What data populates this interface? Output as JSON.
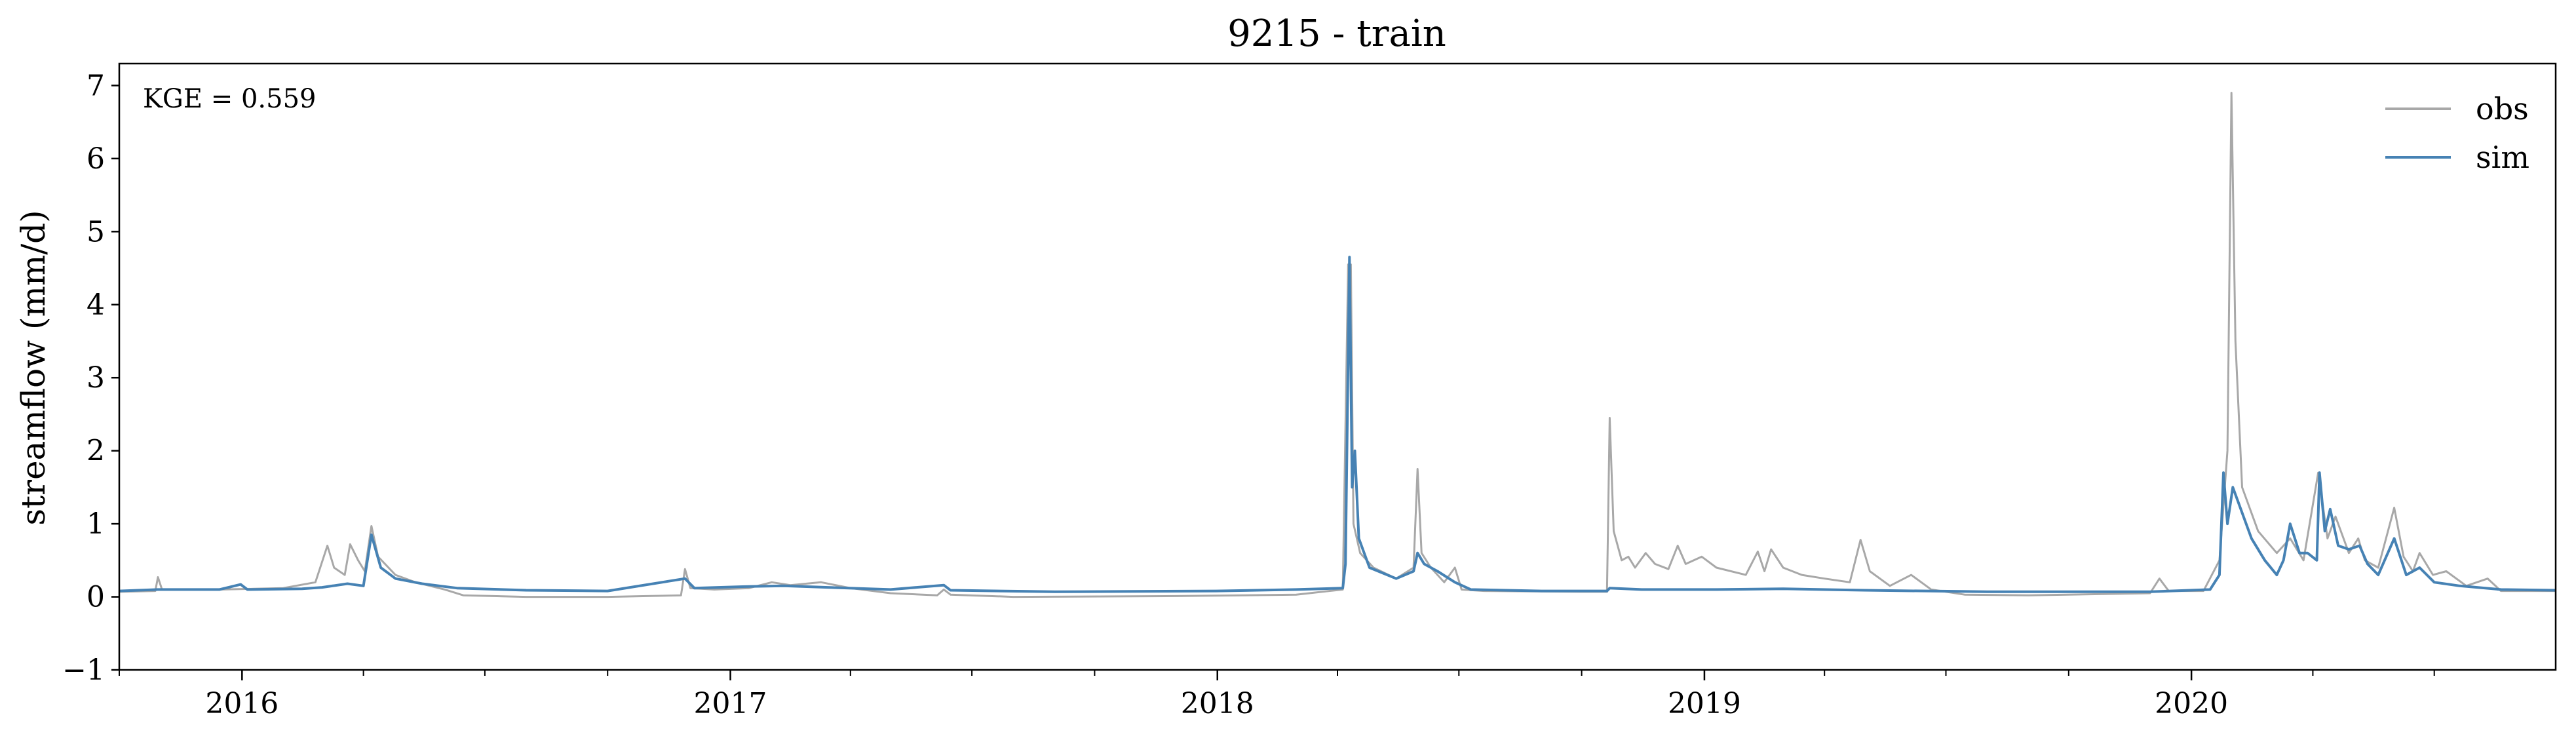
{
  "chart_data": {
    "type": "line",
    "title": "9215 - train",
    "xlabel": "",
    "ylabel": "streamflow (mm/d)",
    "annotation": "KGE = 0.559",
    "xlim": [
      "2015-10-01",
      "2020-09-30"
    ],
    "ylim": [
      -1,
      7.3
    ],
    "yticks": [
      -1,
      0,
      1,
      2,
      3,
      4,
      5,
      6,
      7
    ],
    "ytick_labels": [
      "−1",
      "0",
      "1",
      "2",
      "3",
      "4",
      "5",
      "6",
      "7"
    ],
    "xticks": [
      "2016-01-01",
      "2017-01-01",
      "2018-01-01",
      "2019-01-01",
      "2020-01-01"
    ],
    "xtick_labels": [
      "2016",
      "2017",
      "2018",
      "2019",
      "2020"
    ],
    "legend_position": "top-right",
    "grid": false,
    "series": [
      {
        "name": "obs",
        "color": "#a8a8a8",
        "points": [
          [
            "2015-10-01",
            0.07
          ],
          [
            "2015-10-28",
            0.08
          ],
          [
            "2015-10-30",
            0.27
          ],
          [
            "2015-11-02",
            0.1
          ],
          [
            "2015-12-15",
            0.1
          ],
          [
            "2016-01-10",
            0.11
          ],
          [
            "2016-02-01",
            0.12
          ],
          [
            "2016-02-25",
            0.2
          ],
          [
            "2016-03-05",
            0.7
          ],
          [
            "2016-03-10",
            0.4
          ],
          [
            "2016-03-18",
            0.3
          ],
          [
            "2016-03-22",
            0.72
          ],
          [
            "2016-03-28",
            0.5
          ],
          [
            "2016-04-02",
            0.35
          ],
          [
            "2016-04-07",
            0.97
          ],
          [
            "2016-04-12",
            0.55
          ],
          [
            "2016-04-25",
            0.3
          ],
          [
            "2016-05-10",
            0.2
          ],
          [
            "2016-06-01",
            0.1
          ],
          [
            "2016-06-15",
            0.02
          ],
          [
            "2016-08-01",
            0.0
          ],
          [
            "2016-10-01",
            0.0
          ],
          [
            "2016-11-25",
            0.02
          ],
          [
            "2016-11-28",
            0.38
          ],
          [
            "2016-12-02",
            0.12
          ],
          [
            "2016-12-20",
            0.1
          ],
          [
            "2017-01-15",
            0.12
          ],
          [
            "2017-02-01",
            0.2
          ],
          [
            "2017-02-15",
            0.16
          ],
          [
            "2017-03-10",
            0.2
          ],
          [
            "2017-04-01",
            0.12
          ],
          [
            "2017-05-01",
            0.05
          ],
          [
            "2017-06-05",
            0.02
          ],
          [
            "2017-06-10",
            0.1
          ],
          [
            "2017-06-15",
            0.03
          ],
          [
            "2017-08-01",
            0.0
          ],
          [
            "2017-12-01",
            0.01
          ],
          [
            "2018-03-01",
            0.03
          ],
          [
            "2018-04-05",
            0.1
          ],
          [
            "2018-04-09",
            4.55
          ],
          [
            "2018-04-11",
            4.55
          ],
          [
            "2018-04-13",
            1.0
          ],
          [
            "2018-04-18",
            0.6
          ],
          [
            "2018-04-28",
            0.4
          ],
          [
            "2018-05-15",
            0.25
          ],
          [
            "2018-05-28",
            0.4
          ],
          [
            "2018-05-31",
            1.75
          ],
          [
            "2018-06-03",
            0.6
          ],
          [
            "2018-06-10",
            0.4
          ],
          [
            "2018-06-20",
            0.2
          ],
          [
            "2018-06-28",
            0.4
          ],
          [
            "2018-07-03",
            0.1
          ],
          [
            "2018-07-20",
            0.08
          ],
          [
            "2018-10-01",
            0.07
          ],
          [
            "2018-10-20",
            0.07
          ],
          [
            "2018-10-22",
            2.45
          ],
          [
            "2018-10-25",
            0.9
          ],
          [
            "2018-10-31",
            0.5
          ],
          [
            "2018-11-05",
            0.55
          ],
          [
            "2018-11-10",
            0.4
          ],
          [
            "2018-11-18",
            0.6
          ],
          [
            "2018-11-25",
            0.45
          ],
          [
            "2018-12-05",
            0.38
          ],
          [
            "2018-12-12",
            0.7
          ],
          [
            "2018-12-18",
            0.45
          ],
          [
            "2018-12-30",
            0.55
          ],
          [
            "2019-01-10",
            0.4
          ],
          [
            "2019-02-01",
            0.3
          ],
          [
            "2019-02-10",
            0.62
          ],
          [
            "2019-02-15",
            0.35
          ],
          [
            "2019-02-20",
            0.65
          ],
          [
            "2019-03-01",
            0.4
          ],
          [
            "2019-03-15",
            0.3
          ],
          [
            "2019-04-01",
            0.25
          ],
          [
            "2019-04-20",
            0.2
          ],
          [
            "2019-04-28",
            0.78
          ],
          [
            "2019-05-05",
            0.35
          ],
          [
            "2019-05-20",
            0.15
          ],
          [
            "2019-06-05",
            0.3
          ],
          [
            "2019-06-20",
            0.1
          ],
          [
            "2019-07-15",
            0.03
          ],
          [
            "2019-09-01",
            0.02
          ],
          [
            "2019-12-01",
            0.05
          ],
          [
            "2019-12-08",
            0.25
          ],
          [
            "2019-12-15",
            0.08
          ],
          [
            "2020-01-10",
            0.08
          ],
          [
            "2020-01-22",
            0.5
          ],
          [
            "2020-01-28",
            2.0
          ],
          [
            "2020-01-31",
            6.9
          ],
          [
            "2020-02-03",
            3.5
          ],
          [
            "2020-02-08",
            1.5
          ],
          [
            "2020-02-20",
            0.9
          ],
          [
            "2020-03-05",
            0.6
          ],
          [
            "2020-03-15",
            0.8
          ],
          [
            "2020-03-25",
            0.5
          ],
          [
            "2020-04-05",
            1.7
          ],
          [
            "2020-04-12",
            0.8
          ],
          [
            "2020-04-18",
            1.1
          ],
          [
            "2020-04-28",
            0.6
          ],
          [
            "2020-05-05",
            0.8
          ],
          [
            "2020-05-10",
            0.5
          ],
          [
            "2020-05-20",
            0.4
          ],
          [
            "2020-06-01",
            1.22
          ],
          [
            "2020-06-08",
            0.55
          ],
          [
            "2020-06-15",
            0.35
          ],
          [
            "2020-06-20",
            0.6
          ],
          [
            "2020-06-30",
            0.3
          ],
          [
            "2020-07-10",
            0.35
          ],
          [
            "2020-07-25",
            0.15
          ],
          [
            "2020-08-10",
            0.25
          ],
          [
            "2020-08-20",
            0.08
          ],
          [
            "2020-09-30",
            0.08
          ]
        ]
      },
      {
        "name": "sim",
        "color": "#4682b4",
        "points": [
          [
            "2015-10-01",
            0.08
          ],
          [
            "2015-10-30",
            0.1
          ],
          [
            "2015-12-15",
            0.1
          ],
          [
            "2015-12-31",
            0.17
          ],
          [
            "2016-01-05",
            0.1
          ],
          [
            "2016-02-15",
            0.11
          ],
          [
            "2016-03-01",
            0.13
          ],
          [
            "2016-03-20",
            0.18
          ],
          [
            "2016-04-01",
            0.15
          ],
          [
            "2016-04-07",
            0.85
          ],
          [
            "2016-04-14",
            0.4
          ],
          [
            "2016-04-25",
            0.25
          ],
          [
            "2016-05-15",
            0.18
          ],
          [
            "2016-06-10",
            0.12
          ],
          [
            "2016-08-01",
            0.09
          ],
          [
            "2016-10-01",
            0.08
          ],
          [
            "2016-11-28",
            0.25
          ],
          [
            "2016-12-05",
            0.12
          ],
          [
            "2017-01-10",
            0.14
          ],
          [
            "2017-02-10",
            0.15
          ],
          [
            "2017-03-15",
            0.13
          ],
          [
            "2017-05-01",
            0.1
          ],
          [
            "2017-06-10",
            0.16
          ],
          [
            "2017-06-15",
            0.09
          ],
          [
            "2017-09-01",
            0.07
          ],
          [
            "2017-12-31",
            0.08
          ],
          [
            "2018-03-01",
            0.1
          ],
          [
            "2018-04-05",
            0.12
          ],
          [
            "2018-04-07",
            0.45
          ],
          [
            "2018-04-10",
            4.65
          ],
          [
            "2018-04-12",
            1.5
          ],
          [
            "2018-04-14",
            2.0
          ],
          [
            "2018-04-17",
            0.8
          ],
          [
            "2018-04-25",
            0.4
          ],
          [
            "2018-05-15",
            0.25
          ],
          [
            "2018-05-28",
            0.35
          ],
          [
            "2018-05-31",
            0.6
          ],
          [
            "2018-06-05",
            0.45
          ],
          [
            "2018-06-15",
            0.35
          ],
          [
            "2018-06-28",
            0.2
          ],
          [
            "2018-07-10",
            0.1
          ],
          [
            "2018-09-01",
            0.08
          ],
          [
            "2018-10-20",
            0.08
          ],
          [
            "2018-10-22",
            0.12
          ],
          [
            "2018-11-15",
            0.1
          ],
          [
            "2019-01-10",
            0.1
          ],
          [
            "2019-03-01",
            0.11
          ],
          [
            "2019-05-01",
            0.09
          ],
          [
            "2019-08-01",
            0.07
          ],
          [
            "2019-12-01",
            0.07
          ],
          [
            "2020-01-15",
            0.1
          ],
          [
            "2020-01-22",
            0.3
          ],
          [
            "2020-01-25",
            1.7
          ],
          [
            "2020-01-28",
            1.0
          ],
          [
            "2020-02-01",
            1.5
          ],
          [
            "2020-02-07",
            1.2
          ],
          [
            "2020-02-15",
            0.8
          ],
          [
            "2020-02-25",
            0.5
          ],
          [
            "2020-03-05",
            0.3
          ],
          [
            "2020-03-10",
            0.5
          ],
          [
            "2020-03-15",
            1.0
          ],
          [
            "2020-03-22",
            0.6
          ],
          [
            "2020-03-28",
            0.6
          ],
          [
            "2020-04-04",
            0.5
          ],
          [
            "2020-04-06",
            1.7
          ],
          [
            "2020-04-10",
            0.9
          ],
          [
            "2020-04-14",
            1.2
          ],
          [
            "2020-04-20",
            0.7
          ],
          [
            "2020-04-28",
            0.65
          ],
          [
            "2020-05-06",
            0.7
          ],
          [
            "2020-05-12",
            0.45
          ],
          [
            "2020-05-20",
            0.3
          ],
          [
            "2020-06-01",
            0.8
          ],
          [
            "2020-06-10",
            0.3
          ],
          [
            "2020-06-20",
            0.4
          ],
          [
            "2020-07-01",
            0.2
          ],
          [
            "2020-07-20",
            0.15
          ],
          [
            "2020-08-20",
            0.1
          ],
          [
            "2020-09-30",
            0.09
          ]
        ]
      }
    ]
  }
}
